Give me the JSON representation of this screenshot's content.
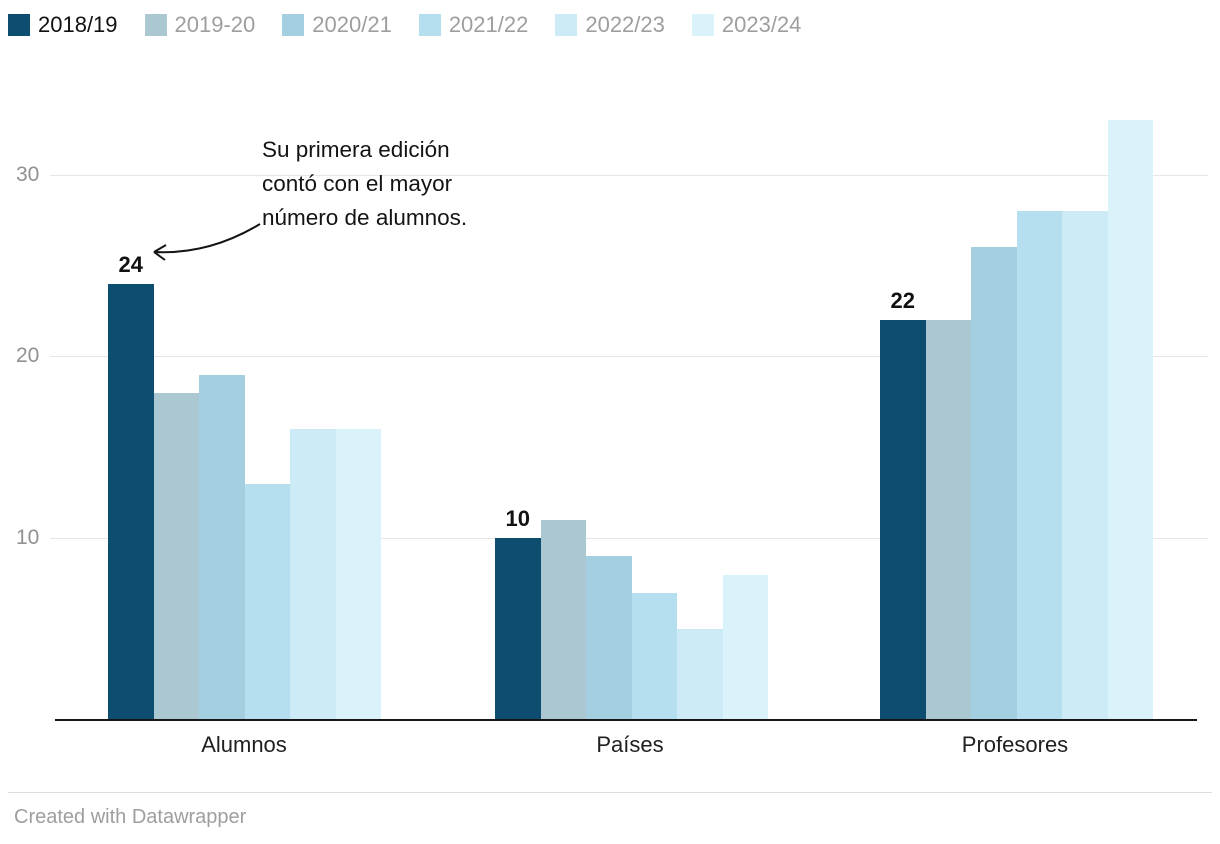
{
  "annotation": {
    "lines": [
      "Su primera edición",
      "contó con el mayor",
      "número de alumnos."
    ]
  },
  "footer": {
    "credit": "Created with Datawrapper"
  },
  "chart_data": {
    "type": "bar",
    "title": "",
    "categories": [
      "Alumnos",
      "Países",
      "Profesores"
    ],
    "series": [
      {
        "name": "2018/19",
        "color": "#0d4d70",
        "values": [
          24,
          10,
          22
        ]
      },
      {
        "name": "2019-20",
        "color": "#abc7d2",
        "values": [
          18,
          11,
          22
        ]
      },
      {
        "name": "2020/21",
        "color": "#a3cfe1",
        "values": [
          19,
          9,
          26
        ]
      },
      {
        "name": "2021/22",
        "color": "#b5dfee",
        "values": [
          13,
          7,
          28
        ]
      },
      {
        "name": "2022/23",
        "color": "#ccebf7",
        "values": [
          16,
          5,
          28
        ]
      },
      {
        "name": "2023/24",
        "color": "#daf3fb",
        "values": [
          16,
          8,
          33
        ]
      }
    ],
    "ylim": [
      0,
      33
    ],
    "yticks": [
      10,
      20,
      30
    ],
    "grid": true,
    "legend_position": "top-left",
    "value_labels": {
      "series": "2018/19",
      "values": [
        24,
        10,
        22
      ]
    },
    "annotation": "Su primera edición contó con el mayor número de alumnos."
  }
}
